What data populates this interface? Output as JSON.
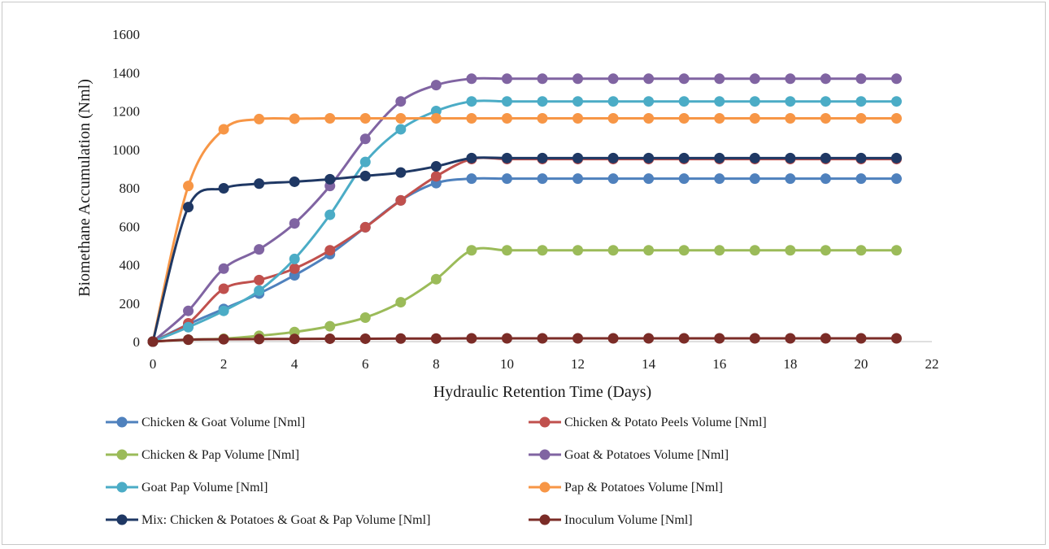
{
  "chart_data": {
    "type": "line",
    "title": "",
    "xlabel": "Hydraulic Retention Time (Days)",
    "ylabel": "Biomethane Accumulation (Nml)",
    "xlim": [
      0,
      22
    ],
    "ylim": [
      0,
      1600
    ],
    "x_ticks": [
      0,
      2,
      4,
      6,
      8,
      10,
      12,
      14,
      16,
      18,
      20,
      22
    ],
    "y_ticks": [
      0,
      200,
      400,
      600,
      800,
      1000,
      1200,
      1400,
      1600
    ],
    "grid": false,
    "legend_position": "bottom",
    "x": [
      0,
      1,
      2,
      3,
      4,
      5,
      6,
      7,
      8,
      9,
      10,
      11,
      12,
      13,
      14,
      15,
      16,
      17,
      18,
      19,
      20,
      21
    ],
    "series": [
      {
        "name": "Chicken & Goat Volume [Nml]",
        "color": "#4f81bd",
        "values": [
          0,
          90,
          170,
          250,
          345,
          455,
          595,
          735,
          825,
          848,
          848,
          848,
          848,
          848,
          848,
          848,
          848,
          848,
          848,
          848,
          848,
          848
        ]
      },
      {
        "name": "Chicken & Potato Peels Volume [Nml]",
        "color": "#c0504d",
        "values": [
          0,
          95,
          275,
          320,
          380,
          475,
          595,
          735,
          860,
          950,
          950,
          950,
          950,
          950,
          950,
          950,
          950,
          950,
          950,
          950,
          950,
          950
        ]
      },
      {
        "name": "Chicken & Pap Volume [Nml]",
        "color": "#9bbb59",
        "values": [
          0,
          10,
          15,
          30,
          50,
          80,
          125,
          205,
          325,
          475,
          475,
          475,
          475,
          475,
          475,
          475,
          475,
          475,
          475,
          475,
          475,
          475
        ]
      },
      {
        "name": "Goat & Potatoes Volume [Nml]",
        "color": "#8064a2",
        "values": [
          0,
          160,
          380,
          480,
          615,
          810,
          1055,
          1250,
          1335,
          1368,
          1368,
          1368,
          1368,
          1368,
          1368,
          1368,
          1368,
          1368,
          1368,
          1368,
          1368,
          1368
        ]
      },
      {
        "name": "Goat  Pap Volume [Nml]",
        "color": "#4bacc6",
        "values": [
          0,
          75,
          160,
          265,
          430,
          660,
          935,
          1105,
          1200,
          1250,
          1250,
          1250,
          1250,
          1250,
          1250,
          1250,
          1250,
          1250,
          1250,
          1250,
          1250,
          1250
        ]
      },
      {
        "name": "Pap & Potatoes Volume [Nml]",
        "color": "#f79646",
        "values": [
          0,
          810,
          1105,
          1158,
          1160,
          1162,
          1162,
          1162,
          1162,
          1162,
          1162,
          1162,
          1162,
          1162,
          1162,
          1162,
          1162,
          1162,
          1162,
          1162,
          1162,
          1162
        ]
      },
      {
        "name": "Mix: Chicken & Potatoes & Goat & Pap Volume [Nml]",
        "color": "#1f3864",
        "values": [
          0,
          700,
          798,
          822,
          832,
          845,
          862,
          880,
          912,
          955,
          955,
          955,
          955,
          955,
          955,
          955,
          955,
          955,
          955,
          955,
          955,
          955
        ]
      },
      {
        "name": "Inoculum Volume [Nml]",
        "color": "#7b2c27",
        "values": [
          0,
          10,
          12,
          13,
          14,
          15,
          15,
          16,
          16,
          17,
          17,
          17,
          17,
          17,
          17,
          17,
          17,
          17,
          17,
          17,
          17,
          17
        ]
      }
    ]
  }
}
